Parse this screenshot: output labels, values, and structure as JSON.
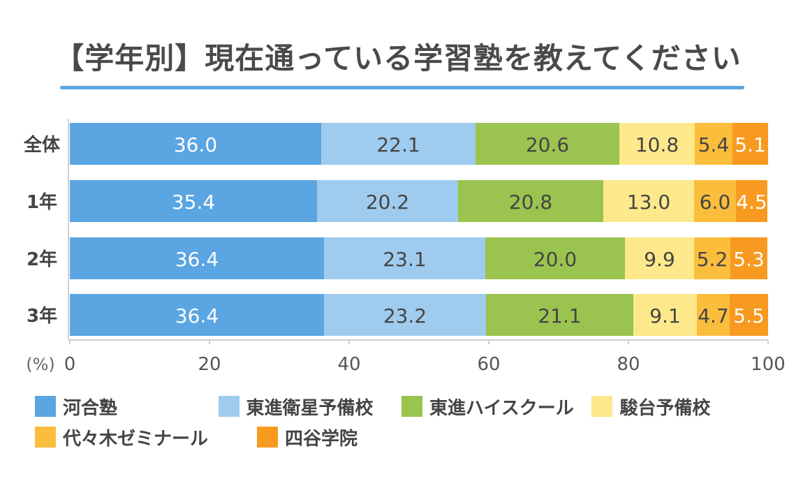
{
  "chart_data": {
    "type": "bar",
    "orientation": "horizontal",
    "stacked": true,
    "title": "【学年別】現在通っている学習塾を教えてください",
    "unit_label": "(%)",
    "categories": [
      "全体",
      "1年",
      "2年",
      "3年"
    ],
    "series": [
      {
        "name": "河合塾",
        "color": "#5aa5e2",
        "label_color": "#ffffff",
        "values": [
          36.0,
          35.4,
          36.4,
          36.4
        ]
      },
      {
        "name": "東進衛星予備校",
        "color": "#9fcbee",
        "label_color": "#444444",
        "values": [
          22.1,
          20.2,
          23.1,
          23.2
        ]
      },
      {
        "name": "東進ハイスクール",
        "color": "#9bc34f",
        "label_color": "#444444",
        "values": [
          20.6,
          20.8,
          20.0,
          21.1
        ]
      },
      {
        "name": "駿台予備校",
        "color": "#fde98b",
        "label_color": "#444444",
        "values": [
          10.8,
          13.0,
          9.9,
          9.1
        ]
      },
      {
        "name": "代々木ゼミナール",
        "color": "#fbbd3c",
        "label_color": "#444444",
        "values": [
          5.4,
          6.0,
          5.2,
          4.7
        ]
      },
      {
        "name": "四谷学院",
        "color": "#f79a1f",
        "label_color": "#ffffff",
        "values": [
          5.1,
          4.5,
          5.3,
          5.5
        ]
      }
    ],
    "xlim": [
      0,
      100
    ],
    "xticks": [
      0,
      20,
      40,
      60,
      80,
      100
    ],
    "legend_position": "bottom",
    "grid": false
  }
}
